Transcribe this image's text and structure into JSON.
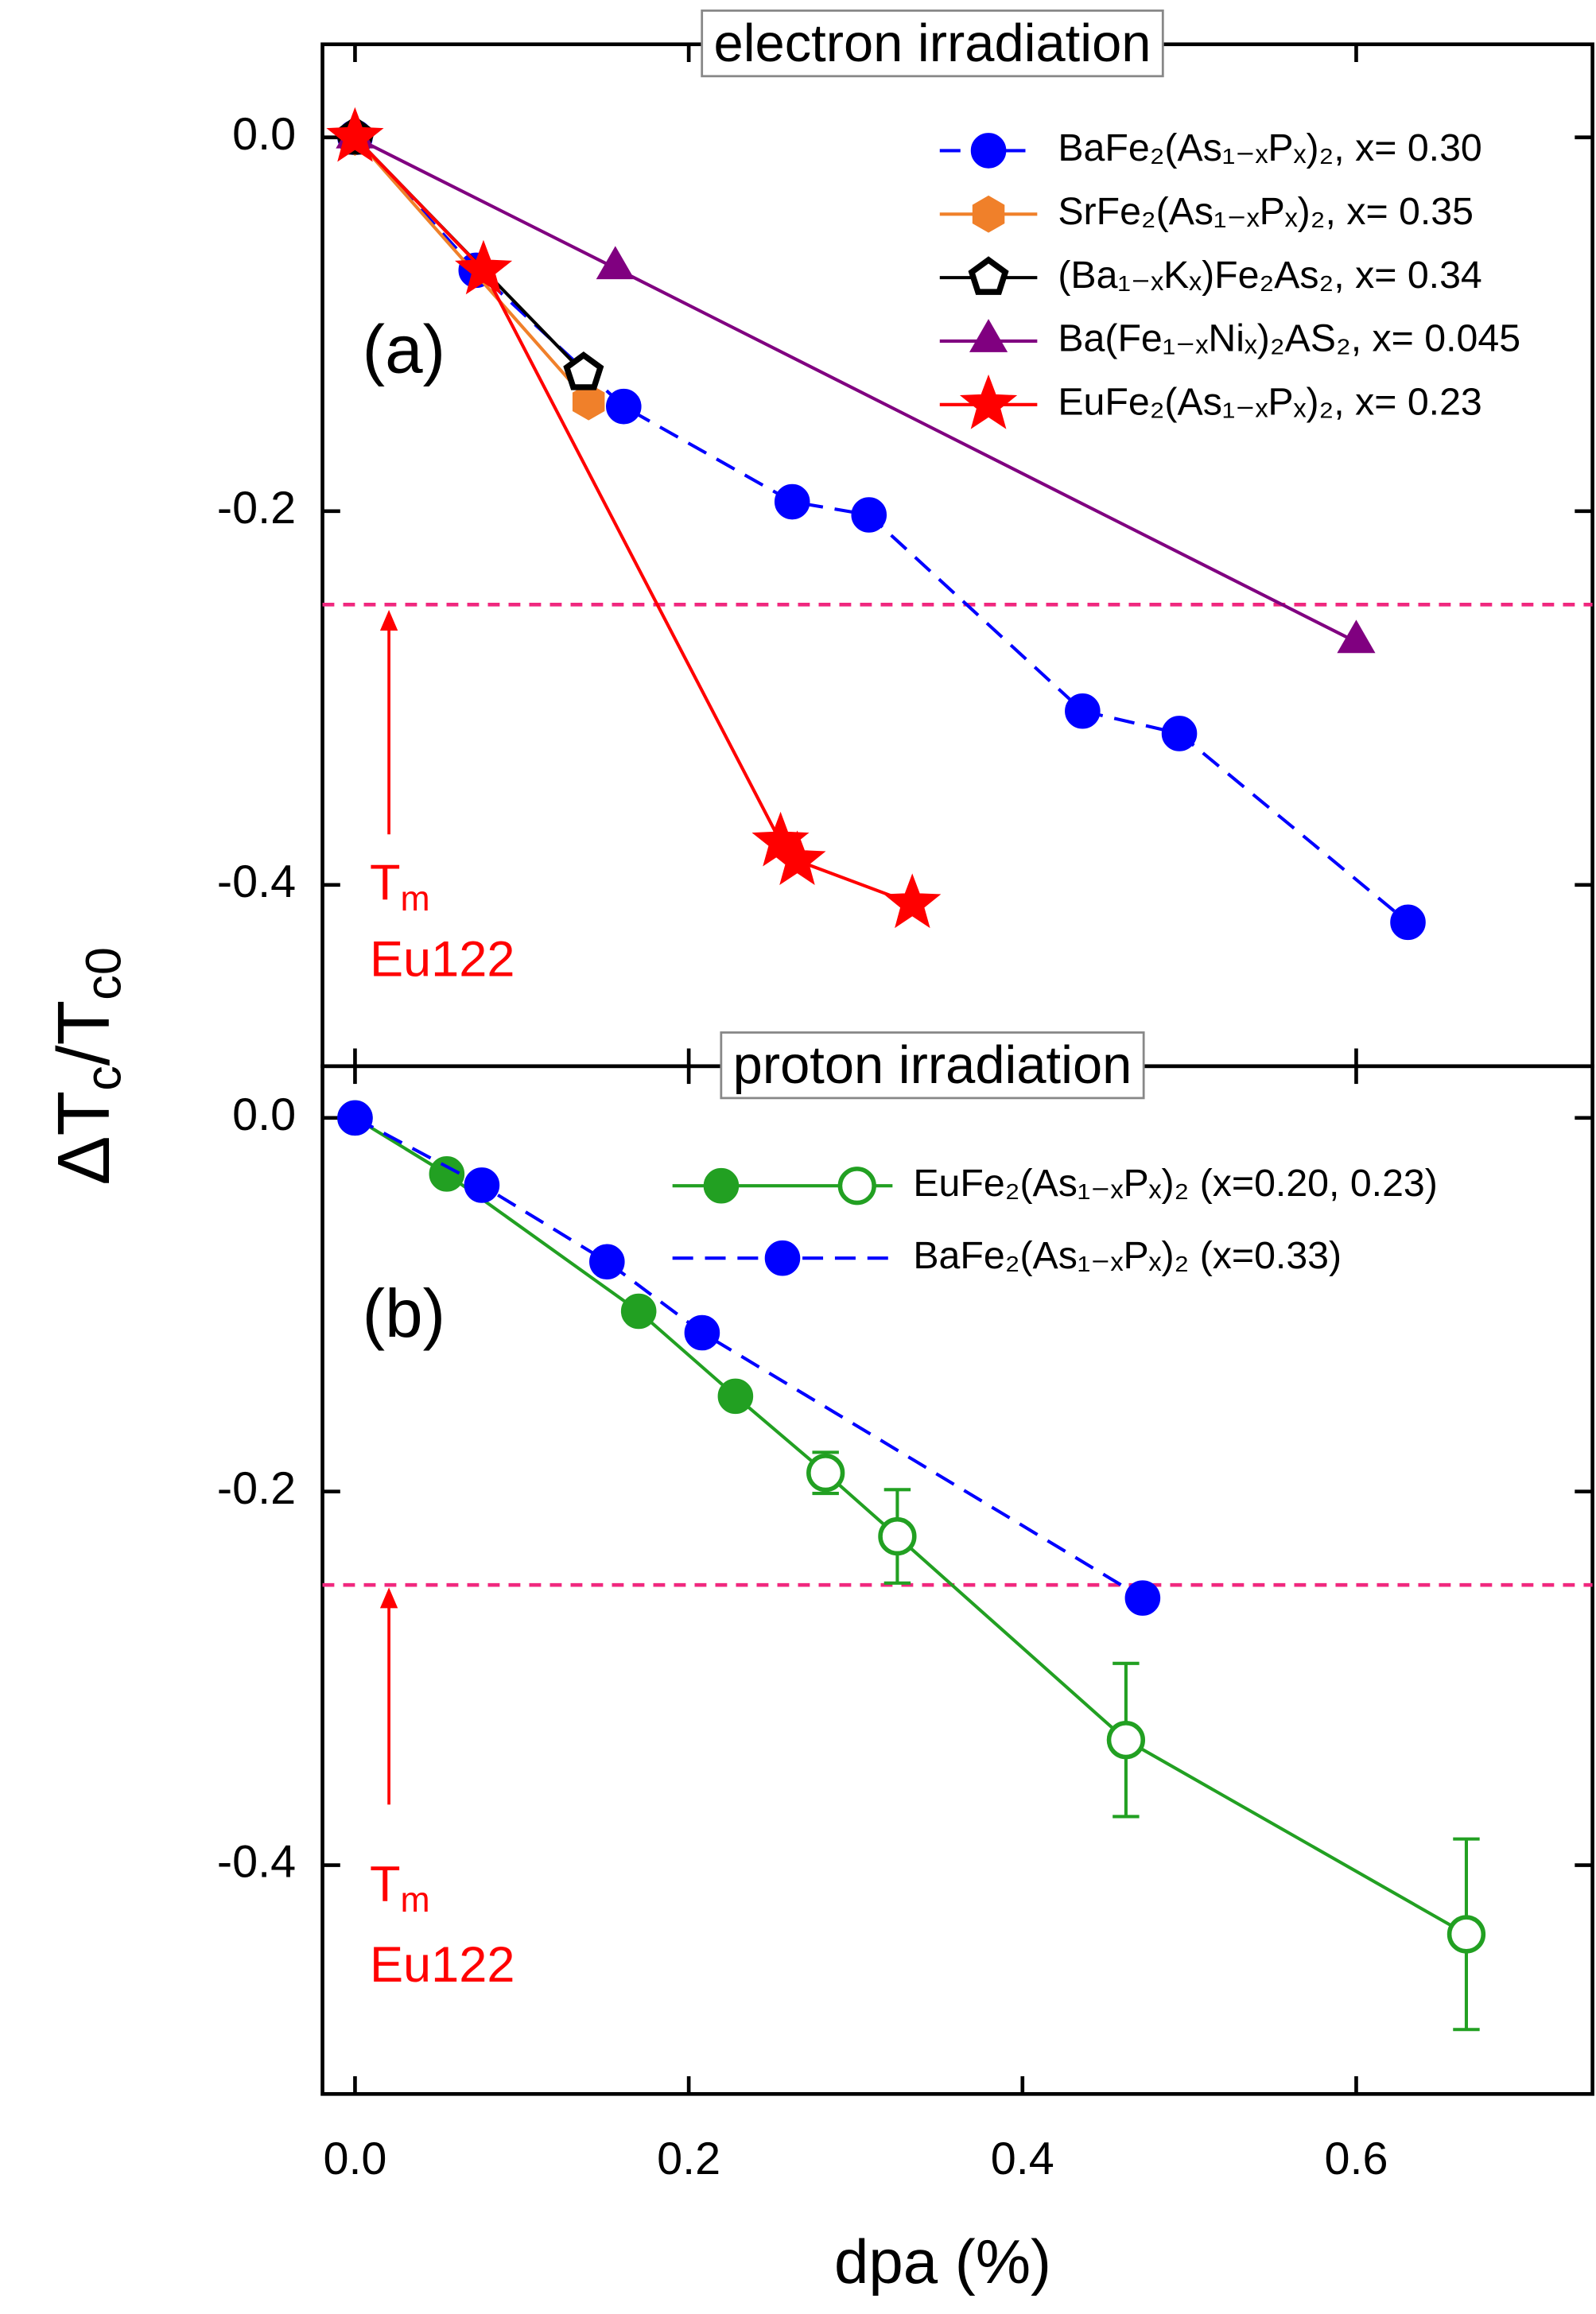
{
  "chart_data": [
    {
      "type": "line",
      "title": "electron irradiation",
      "panel_label": "(a)",
      "xlim": [
        -0.0195,
        0.7416
      ],
      "ylim": [
        -0.497,
        0.0498
      ],
      "yticks": [
        {
          "value": 0,
          "label": "0.0"
        },
        {
          "value": -0.2,
          "label": "-0.2"
        },
        {
          "value": -0.4,
          "label": "-0.4"
        }
      ],
      "hline": -0.25,
      "hline_color": "#f0287e",
      "annotation": [
        "T",
        "m"
      ],
      "annotation_2": "Eu122",
      "annotation_color": "#ff0000",
      "legend": "upper right",
      "series": [
        {
          "name": "BaFe₂(As₁₋ₓPₓ)₂, x= 0.30",
          "color": "#0000ff",
          "marker": "circle",
          "dash": true,
          "x": [
            0,
            0.0726,
            0.161,
            0.262,
            0.308,
            0.436,
            0.494,
            0.631
          ],
          "values": [
            0,
            -0.0711,
            -0.144,
            -0.195,
            -0.202,
            -0.307,
            -0.319,
            -0.42
          ]
        },
        {
          "name": "SrFe₂(As₁₋ₓPₓ)₂, x= 0.35",
          "color": "#f0802a",
          "marker": "hexagon",
          "dash": false,
          "x": [
            0,
            0.14
          ],
          "values": [
            0,
            -0.1415
          ]
        },
        {
          "name": "(Ba₁₋ₓKₓ)Fe₂As₂, x= 0.34",
          "color": "#000000",
          "marker": "pentagon",
          "dash": false,
          "x": [
            0,
            0.137
          ],
          "values": [
            0,
            -0.126
          ]
        },
        {
          "name": "Ba(Fe₁₋ₓNiₓ)₂AS₂, x= 0.045",
          "color": "#800080",
          "marker": "triangle",
          "dash": false,
          "x": [
            0,
            0.156,
            0.6
          ],
          "values": [
            0,
            -0.07,
            -0.27
          ]
        },
        {
          "name": "EuFe₂(As₁₋ₓPₓ)₂, x= 0.23",
          "color": "#ff0000",
          "marker": "star",
          "dash": false,
          "x": [
            0,
            0.077,
            0.255,
            0.265,
            0.334
          ],
          "values": [
            0,
            -0.071,
            -0.377,
            -0.387,
            -0.41
          ]
        }
      ]
    },
    {
      "type": "line",
      "title": "proton irradiation",
      "panel_label": "(b)",
      "xlim": [
        -0.0195,
        0.7416
      ],
      "ylim": [
        -0.5225,
        0.0277
      ],
      "xticks": [
        {
          "value": 0,
          "label": "0.0"
        },
        {
          "value": 0.2,
          "label": "0.2"
        },
        {
          "value": 0.4,
          "label": "0.4"
        },
        {
          "value": 0.6,
          "label": "0.6"
        }
      ],
      "yticks": [
        {
          "value": 0,
          "label": "0.0"
        },
        {
          "value": -0.2,
          "label": "-0.2"
        },
        {
          "value": -0.4,
          "label": "-0.4"
        }
      ],
      "xlabel": "dpa (%)",
      "ylabel": [
        "ΔT",
        "c",
        "/T",
        "c0"
      ],
      "hline": -0.25,
      "hline_color": "#f0287e",
      "annotation": [
        "T",
        "m"
      ],
      "annotation_2": "Eu122",
      "annotation_color": "#ff0000",
      "legend": "upper right",
      "series": [
        {
          "name": "EuFe₂(As₁₋ₓPₓ)₂ (x=0.20, 0.23)",
          "color": "#22a022",
          "marker": "circle",
          "dash": false,
          "x": [
            0,
            0.055,
            0.17,
            0.228,
            0.282,
            0.325,
            0.462,
            0.666
          ],
          "values": [
            0,
            -0.03,
            -0.1035,
            -0.149,
            -0.19,
            -0.224,
            -0.333,
            -0.437
          ],
          "errors": [
            null,
            null,
            null,
            null,
            0.011,
            0.025,
            0.041,
            0.051
          ],
          "hollow": [
            false,
            false,
            false,
            false,
            true,
            true,
            true,
            true
          ]
        },
        {
          "name": "BaFe₂(As₁₋ₓPₓ)₂ (x=0.33)",
          "color": "#0000ff",
          "marker": "circle",
          "dash": true,
          "x": [
            0,
            0.076,
            0.151,
            0.208,
            0.472
          ],
          "values": [
            0,
            -0.036,
            -0.077,
            -0.115,
            -0.257
          ]
        }
      ]
    }
  ]
}
